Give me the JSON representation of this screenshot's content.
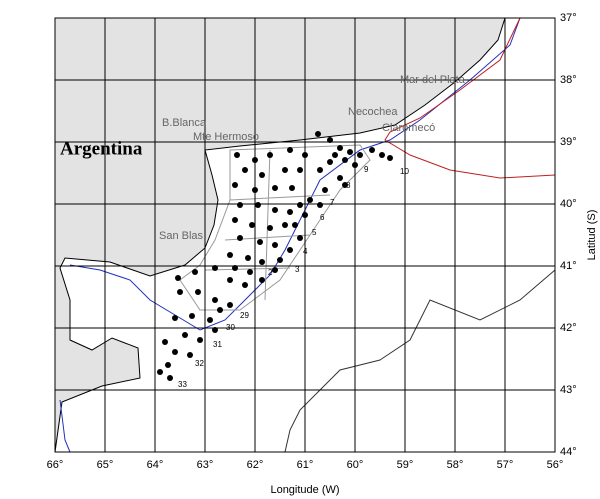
{
  "map": {
    "xticks": [
      "66°",
      "65°",
      "64°",
      "63°",
      "62°",
      "61°",
      "60°",
      "59°",
      "58°",
      "57°",
      "56°"
    ],
    "yticks": [
      "37°",
      "38°",
      "39°",
      "40°",
      "41°",
      "42°",
      "43°",
      "44°"
    ],
    "xlabel": "Longitude (W)",
    "ylabel": "Latitud (S)",
    "country": "Argentina",
    "places": [
      "B.Blanca",
      "Mte Hermoso",
      "Claromecó",
      "Necochea",
      "Mar del Plata",
      "San Blas"
    ],
    "stations": [
      "10",
      "9",
      "8",
      "7",
      "6",
      "5",
      "4",
      "3",
      "2",
      "29",
      "30",
      "31",
      "32",
      "33"
    ]
  }
}
